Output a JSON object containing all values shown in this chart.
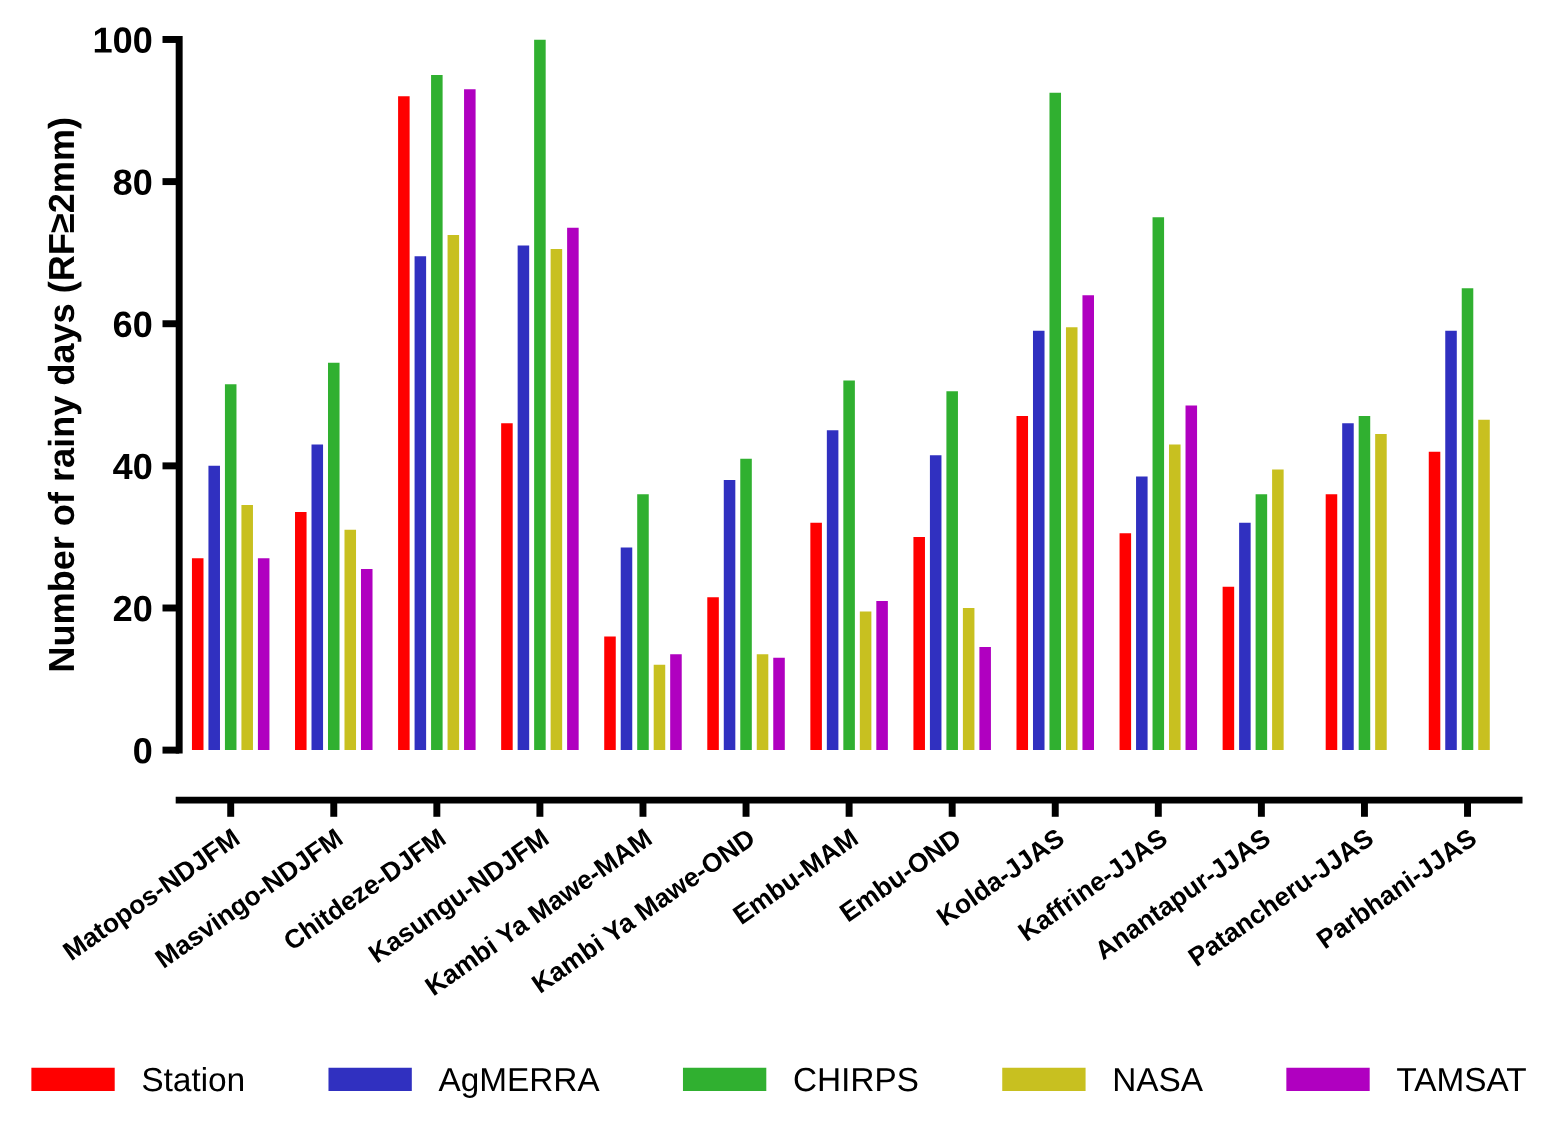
{
  "chart_data": {
    "type": "bar",
    "ylabel": "Number of rainy days (RF≥2mm)",
    "categories": [
      "Matopos-NDJFM",
      "Masvingo-NDJFM",
      "Chitdeze-DJFM",
      "Kasungu-NDJFM",
      "Kambi Ya Mawe-MAM",
      "Kambi Ya Mawe-OND",
      "Embu-MAM",
      "Embu-OND",
      "Kolda-JJAS",
      "Kaffrine-JJAS",
      "Anantapur-JJAS",
      "Patancheru-JJAS",
      "Parbhani-JJAS"
    ],
    "series": [
      {
        "name": "Station",
        "color": "#ff0000",
        "values": [
          27,
          33.5,
          92,
          46,
          16,
          21.5,
          32,
          30,
          47,
          30.5,
          23,
          36,
          42
        ]
      },
      {
        "name": "AgMERRA",
        "color": "#3030c0",
        "values": [
          40,
          43,
          69.5,
          71,
          28.5,
          38,
          45,
          41.5,
          59,
          38.5,
          32,
          46,
          59
        ]
      },
      {
        "name": "CHIRPS",
        "color": "#30b030",
        "values": [
          51.5,
          54.5,
          95,
          100,
          36,
          41,
          52,
          50.5,
          92.5,
          75,
          36,
          47,
          65
        ]
      },
      {
        "name": "NASA",
        "color": "#c8c020",
        "values": [
          34.5,
          31,
          72.5,
          70.5,
          12,
          13.5,
          19.5,
          20,
          59.5,
          43,
          39.5,
          44.5,
          46.5
        ]
      },
      {
        "name": "TAMSAT",
        "color": "#b000c0",
        "values": [
          27,
          25.5,
          93,
          73.5,
          13.5,
          13,
          21,
          14.5,
          64,
          48.5,
          null,
          null,
          null
        ]
      }
    ],
    "ylim": [
      0,
      100
    ],
    "yticks": [
      0,
      20,
      40,
      60,
      80,
      100
    ],
    "grid": false,
    "legend": "bottom"
  }
}
